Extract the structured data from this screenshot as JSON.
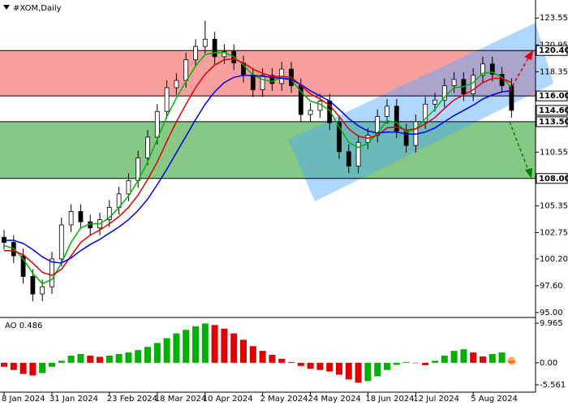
{
  "chart_data": {
    "type": "candlestick",
    "title": "#XOM,Daily",
    "categories": [
      "8 Jan 2024",
      null,
      null,
      null,
      null,
      "31 Jan 2024",
      null,
      null,
      null,
      null,
      null,
      "23 Feb 2024",
      null,
      null,
      null,
      null,
      "18 Mar 2024",
      null,
      null,
      null,
      null,
      "10 Apr 2024",
      null,
      null,
      null,
      null,
      null,
      "2 May 2024",
      null,
      null,
      null,
      null,
      "24 May 2024",
      null,
      null,
      null,
      null,
      null,
      "18 Jun 2024",
      null,
      null,
      null,
      null,
      "12 Jul 2024",
      null,
      null,
      null,
      null,
      null,
      "5 Aug 2024",
      null,
      null,
      null,
      null
    ],
    "open": [
      102.3,
      101.8,
      100.5,
      98.5,
      96.8,
      97.5,
      100.2,
      103.5,
      104.8,
      103.8,
      103.2,
      104.0,
      105.2,
      106.5,
      107.8,
      110.0,
      112.0,
      114.5,
      116.8,
      117.5,
      119.5,
      120.8,
      121.5,
      119.8,
      120.3,
      119.2,
      118.0,
      116.6,
      118.0,
      117.2,
      118.6,
      117.0,
      114.2,
      114.6,
      115.5,
      113.4,
      110.6,
      109.2,
      111.5,
      112.2,
      114.0,
      115.0,
      112.6,
      111.2,
      113.5,
      115.2,
      115.6,
      117.0,
      117.6,
      116.2,
      118.0,
      119.1,
      118.1,
      117.0
    ],
    "high": [
      103.0,
      102.5,
      101.2,
      99.2,
      98.2,
      100.9,
      104.2,
      105.5,
      105.5,
      104.5,
      104.7,
      105.9,
      107.2,
      108.5,
      110.7,
      112.7,
      115.2,
      117.5,
      118.2,
      120.2,
      121.5,
      123.3,
      122.2,
      121.0,
      121.0,
      119.9,
      118.7,
      118.7,
      118.7,
      119.3,
      119.3,
      117.7,
      115.3,
      116.2,
      116.2,
      114.1,
      111.3,
      112.2,
      112.9,
      114.7,
      115.7,
      115.7,
      113.3,
      114.2,
      115.9,
      116.3,
      117.7,
      118.3,
      118.3,
      118.7,
      119.8,
      119.8,
      118.8,
      117.7
    ],
    "low": [
      101.1,
      99.8,
      97.8,
      96.1,
      96.1,
      96.8,
      99.5,
      102.8,
      103.1,
      102.5,
      102.5,
      103.3,
      104.5,
      105.8,
      107.1,
      109.3,
      111.3,
      113.8,
      116.1,
      116.8,
      118.8,
      120.1,
      119.1,
      119.1,
      118.5,
      117.3,
      115.9,
      115.9,
      116.5,
      116.5,
      116.3,
      113.5,
      113.5,
      113.9,
      112.7,
      109.9,
      108.5,
      108.5,
      110.8,
      111.5,
      113.3,
      111.9,
      110.5,
      110.5,
      112.8,
      114.5,
      114.9,
      116.3,
      115.5,
      115.5,
      117.3,
      117.4,
      116.3,
      113.9
    ],
    "close": [
      101.8,
      100.5,
      98.5,
      96.8,
      97.5,
      100.2,
      103.5,
      104.8,
      103.8,
      103.2,
      104.0,
      105.2,
      106.5,
      107.8,
      110.0,
      112.0,
      114.5,
      116.8,
      117.5,
      119.5,
      120.8,
      121.5,
      119.8,
      120.3,
      119.2,
      118.0,
      116.6,
      118.0,
      117.2,
      118.6,
      117.0,
      114.2,
      114.6,
      115.5,
      113.4,
      110.6,
      109.2,
      111.5,
      112.2,
      114.0,
      115.0,
      112.6,
      111.2,
      113.5,
      115.2,
      115.6,
      117.0,
      117.6,
      116.2,
      118.0,
      119.1,
      118.1,
      117.0,
      114.6
    ],
    "up_color": "#ffffff",
    "down_color": "#000000",
    "series": [
      {
        "color": "#00b400",
        "values": [
          101.5,
          101.2,
          100.2,
          98.8,
          97.8,
          98.2,
          99.8,
          101.8,
          103.2,
          103.6,
          103.6,
          104.2,
          105.2,
          106.3,
          107.8,
          109.6,
          111.8,
          114.0,
          115.8,
          117.4,
          118.9,
          120.0,
          120.2,
          120.2,
          119.8,
          119.0,
          118.0,
          117.6,
          117.4,
          117.8,
          117.6,
          116.4,
          115.5,
          115.2,
          114.6,
          113.0,
          111.5,
          111.0,
          111.4,
          112.4,
          113.6,
          113.4,
          112.5,
          112.8,
          113.8,
          114.7,
          115.9,
          116.8,
          116.9,
          117.3,
          118.2,
          118.3,
          117.8,
          116.8
        ]
      },
      {
        "color": "#e00000",
        "values": [
          101.0,
          101.0,
          100.6,
          99.8,
          98.9,
          98.6,
          99.2,
          100.5,
          101.8,
          102.5,
          103.0,
          103.6,
          104.3,
          105.2,
          106.4,
          107.9,
          109.6,
          111.6,
          113.5,
          115.2,
          116.8,
          118.1,
          119.0,
          119.5,
          119.6,
          119.2,
          118.6,
          118.2,
          117.9,
          117.9,
          117.8,
          117.0,
          116.2,
          115.7,
          115.1,
          114.0,
          112.8,
          112.1,
          111.9,
          112.2,
          112.9,
          113.0,
          112.7,
          112.8,
          113.3,
          113.9,
          114.8,
          115.6,
          116.1,
          116.6,
          117.3,
          117.7,
          117.7,
          117.3
        ]
      },
      {
        "color": "#0000e0",
        "values": [
          102.0,
          102.0,
          101.7,
          101.1,
          100.4,
          99.9,
          99.8,
          100.3,
          101.0,
          101.6,
          102.1,
          102.7,
          103.3,
          104.0,
          104.9,
          106.0,
          107.4,
          108.9,
          110.5,
          112.1,
          113.7,
          115.2,
          116.4,
          117.3,
          117.8,
          118.0,
          118.0,
          117.9,
          117.8,
          117.7,
          117.6,
          117.1,
          116.5,
          116.0,
          115.5,
          114.7,
          113.8,
          113.1,
          112.6,
          112.4,
          112.5,
          112.5,
          112.3,
          112.3,
          112.5,
          112.9,
          113.5,
          114.1,
          114.6,
          115.1,
          115.7,
          116.1,
          116.4,
          116.5
        ]
      }
    ],
    "zones": [
      {
        "low": 116.0,
        "high": 120.4,
        "color": "#f8a0a0"
      },
      {
        "low": 108.0,
        "high": 113.5,
        "color": "#86c986"
      }
    ],
    "levels": [
      {
        "value": 120.4,
        "label": "120.40"
      },
      {
        "value": 116.0,
        "label": "116.00"
      },
      {
        "value": 113.5,
        "label": "113.50"
      },
      {
        "value": 108.0,
        "label": "108.00"
      }
    ],
    "last_price": {
      "value": 114.6,
      "label": "114.60"
    },
    "ylim": [
      94.6,
      125.3
    ],
    "yticks": [
      {
        "value": 123.55,
        "label": "123.55"
      },
      {
        "value": 120.95,
        "label": "120.95"
      },
      {
        "value": 118.35,
        "label": "118.35"
      },
      {
        "value": 110.55,
        "label": "110.55"
      },
      {
        "value": 105.35,
        "label": "105.35"
      },
      {
        "value": 102.75,
        "label": "102.75"
      },
      {
        "value": 100.2,
        "label": "100.20"
      },
      {
        "value": 97.6,
        "label": "97.60"
      },
      {
        "value": 95,
        "label": "95.00"
      }
    ],
    "indicator": {
      "type": "bar",
      "title": "AO 0.486",
      "values": [
        -1.0,
        -1.8,
        -2.8,
        -3.2,
        -2.6,
        -1.0,
        0.5,
        1.8,
        2.2,
        1.8,
        1.5,
        1.8,
        2.2,
        2.6,
        3.2,
        4.0,
        5.0,
        6.2,
        7.4,
        8.3,
        9.2,
        9.9,
        9.5,
        8.6,
        7.4,
        5.8,
        4.2,
        3.0,
        2.0,
        1.0,
        0.2,
        -0.8,
        -1.5,
        -1.8,
        -2.2,
        -3.0,
        -4.2,
        -5.0,
        -4.6,
        -3.4,
        -1.8,
        -0.5,
        0.2,
        0.0,
        -0.6,
        0.5,
        1.8,
        3.0,
        3.4,
        2.6,
        1.6,
        2.2,
        2.6,
        0.486
      ],
      "up_color": "#00b000",
      "down_color": "#e00000",
      "ylim": [
        -7.2,
        10.8
      ],
      "yticks": [
        {
          "value": 9.965,
          "label": "9.965"
        },
        {
          "value": 0,
          "label": "0.00"
        },
        {
          "value": -5.561,
          "label": "-5.561"
        }
      ]
    }
  }
}
